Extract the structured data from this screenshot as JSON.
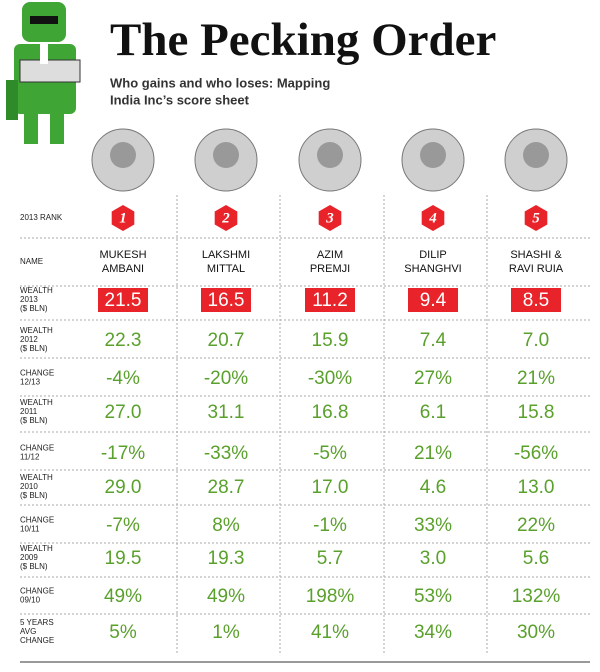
{
  "header": {
    "title": "The Pecking Order",
    "subtitle": [
      "Who gains and who loses: Mapping",
      "India Inc’s score sheet"
    ]
  },
  "table": {
    "row_labels": [
      [
        "2013 RANK"
      ],
      [
        "NAME"
      ],
      [
        "WEALTH",
        "2013",
        "($ BLN)"
      ],
      [
        "WEALTH",
        "2012",
        "($ BLN)"
      ],
      [
        "CHANGE",
        "12/13"
      ],
      [
        "WEALTH",
        "2011",
        "($ BLN)"
      ],
      [
        "CHANGE",
        "11/12"
      ],
      [
        "WEALTH",
        "2010",
        "($ BLN)"
      ],
      [
        "CHANGE",
        "10/11"
      ],
      [
        "WEALTH",
        "2009",
        "($ BLN)"
      ],
      [
        "CHANGE",
        "09/10"
      ],
      [
        "5 YEARS",
        "AVG",
        "CHANGE"
      ]
    ],
    "columns": [
      {
        "rank": "1",
        "name": [
          "MUKESH",
          "AMBANI"
        ],
        "values": [
          "21.5",
          "22.3",
          "-4%",
          "27.0",
          "-17%",
          "29.0",
          "-7%",
          "19.5",
          "49%",
          "5%"
        ]
      },
      {
        "rank": "2",
        "name": [
          "LAKSHMI",
          "MITTAL"
        ],
        "values": [
          "16.5",
          "20.7",
          "-20%",
          "31.1",
          "-33%",
          "28.7",
          "8%",
          "19.3",
          "49%",
          "1%"
        ]
      },
      {
        "rank": "3",
        "name": [
          "AZIM",
          "PREMJI"
        ],
        "values": [
          "11.2",
          "15.9",
          "-30%",
          "16.8",
          "-5%",
          "17.0",
          "-1%",
          "5.7",
          "198%",
          "41%"
        ]
      },
      {
        "rank": "4",
        "name": [
          "DILIP",
          "SHANGHVI"
        ],
        "values": [
          "9.4",
          "7.4",
          "27%",
          "6.1",
          "21%",
          "4.6",
          "33%",
          "3.0",
          "53%",
          "34%"
        ]
      },
      {
        "rank": "5",
        "name": [
          "SHASHI &",
          "RAVI RUIA"
        ],
        "values": [
          "8.5",
          "7.0",
          "21%",
          "15.8",
          "-56%",
          "13.0",
          "22%",
          "5.6",
          "132%",
          "30%"
        ]
      }
    ]
  }
}
